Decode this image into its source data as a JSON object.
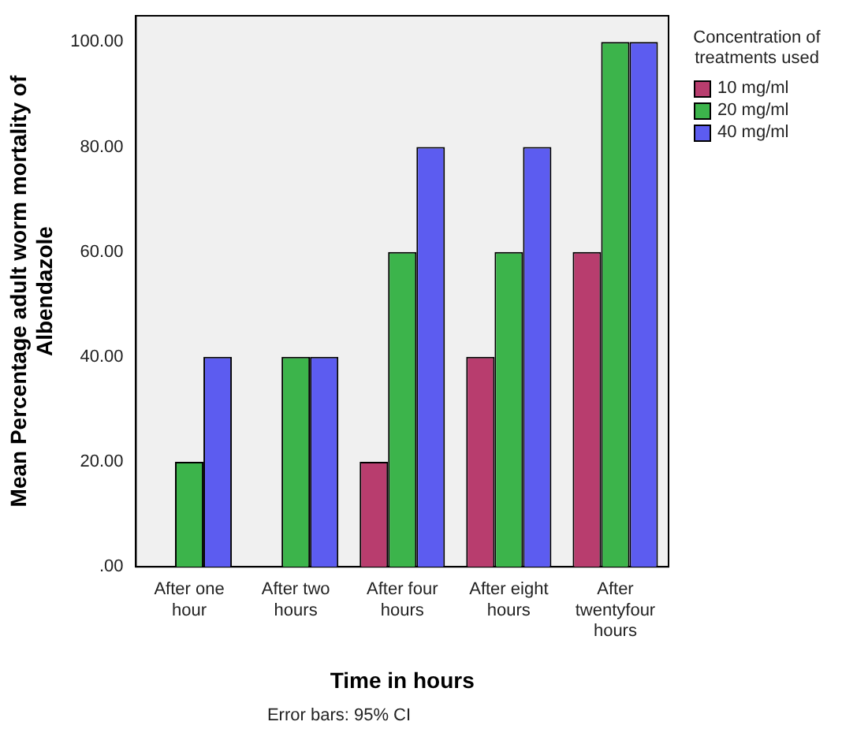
{
  "chart_data": {
    "type": "bar",
    "xlabel": "Time in hours",
    "ylabel": "Mean Percentage adult worm mortality of Albendazole",
    "legend_title": "Concentration of treatments used",
    "categories": [
      "After one hour",
      "After two hours",
      "After four hours",
      "After eight hours",
      "After twentyfour hours"
    ],
    "series": [
      {
        "name": "10 mg/ml",
        "color": "#b83d6e",
        "values": [
          0,
          0,
          20,
          40,
          60
        ]
      },
      {
        "name": "20 mg/ml",
        "color": "#3cb44b",
        "values": [
          20,
          40,
          60,
          60,
          100
        ]
      },
      {
        "name": "40 mg/ml",
        "color": "#5c5cf0",
        "values": [
          40,
          40,
          80,
          80,
          100
        ]
      }
    ],
    "ylim": [
      0,
      105
    ],
    "yticks": [
      {
        "value": 0,
        "label": ".00"
      },
      {
        "value": 20,
        "label": "20.00"
      },
      {
        "value": 40,
        "label": "40.00"
      },
      {
        "value": 60,
        "label": "60.00"
      },
      {
        "value": 80,
        "label": "80.00"
      },
      {
        "value": 100,
        "label": "100.00"
      }
    ],
    "grid": false,
    "legend": "right",
    "annotations": [
      "Error bars: 95% CI"
    ]
  }
}
